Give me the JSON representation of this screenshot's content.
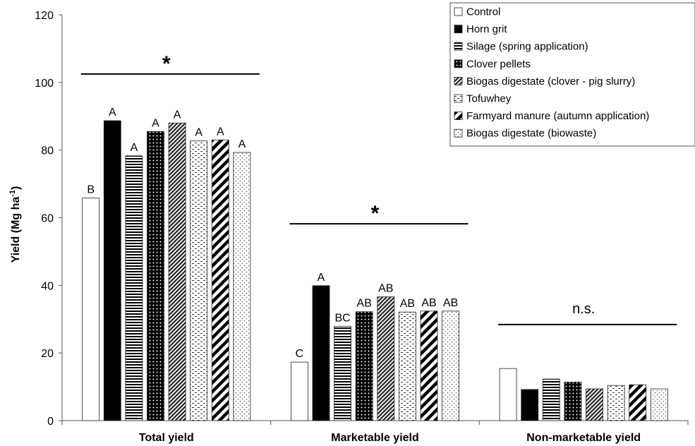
{
  "chart_data": {
    "type": "bar",
    "ylabel": "Yield (Mg ha",
    "ylabel_sup": "-1",
    "ylabel_close": ")",
    "ylim": [
      0,
      120
    ],
    "yticks": [
      0,
      20,
      40,
      60,
      80,
      100,
      120
    ],
    "categories": [
      "Total yield",
      "Marketable yield",
      "Non-marketable yield"
    ],
    "series": [
      {
        "name": "Control",
        "pattern": "white",
        "values": [
          65.8,
          17.3,
          15.4
        ]
      },
      {
        "name": "Horn grit",
        "pattern": "black",
        "values": [
          88.7,
          39.9,
          9.2
        ]
      },
      {
        "name": "Silage (spring application)",
        "pattern": "hstripes",
        "values": [
          78.3,
          27.9,
          12.3
        ]
      },
      {
        "name": "Clover pellets",
        "pattern": "dots",
        "values": [
          85.5,
          32.2,
          11.4
        ]
      },
      {
        "name": "Biogas digestate (clover - pig slurry)",
        "pattern": "diag-fine",
        "values": [
          88.0,
          36.6,
          9.4
        ]
      },
      {
        "name": "Tofuwhey",
        "pattern": "dashes",
        "values": [
          82.7,
          32.1,
          10.4
        ]
      },
      {
        "name": "Farmyard manure (autumn application)",
        "pattern": "diag-bold",
        "values": [
          83.0,
          32.4,
          10.6
        ]
      },
      {
        "name": "Biogas digestate (biowaste)",
        "pattern": "sparse-dots",
        "values": [
          79.3,
          32.4,
          9.4
        ]
      }
    ],
    "bar_labels": [
      [
        "B",
        "A",
        "A",
        "A",
        "A",
        "A",
        "A",
        "A"
      ],
      [
        "C",
        "A",
        "BC",
        "AB",
        "AB",
        "AB",
        "AB",
        "AB"
      ],
      [
        "",
        "",
        "",
        "",
        "",
        "",
        "",
        ""
      ]
    ],
    "significance": [
      {
        "text": "*",
        "y": 102.5
      },
      {
        "text": "*",
        "y": 58.2
      },
      {
        "text": "n.s.",
        "y": 28.4
      }
    ],
    "legend_position": "top-right",
    "grid": false
  }
}
